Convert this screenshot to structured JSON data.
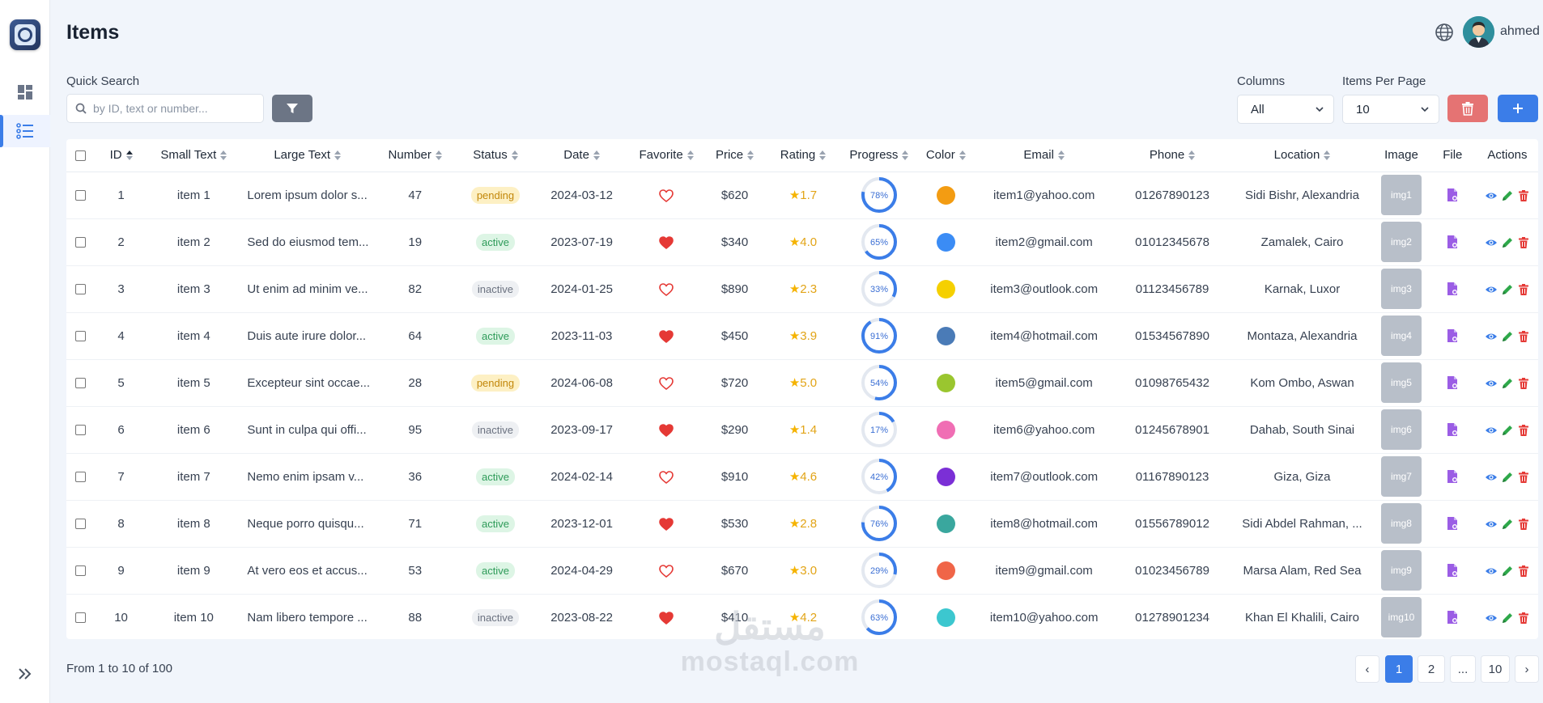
{
  "header": {
    "title": "Items",
    "user_name": "ahmed"
  },
  "filters": {
    "search_label": "Quick Search",
    "search_placeholder": "by ID, text or number...",
    "columns_label": "Columns",
    "columns_value": "All",
    "per_page_label": "Items Per Page",
    "per_page_value": "10"
  },
  "table": {
    "headers": [
      "ID",
      "Small Text",
      "Large Text",
      "Number",
      "Status",
      "Date",
      "Favorite",
      "Price",
      "Rating",
      "Progress",
      "Color",
      "Email",
      "Phone",
      "Location",
      "Image",
      "File",
      "Actions"
    ],
    "rows": [
      {
        "id": "1",
        "small": "item 1",
        "large": "Lorem ipsum dolor s...",
        "number": "47",
        "status": "pending",
        "date": "2024-03-12",
        "favorite": false,
        "price": "$620",
        "rating": "1.7",
        "progress": 78,
        "progress_label": "78%",
        "color": "#f39c12",
        "email": "item1@yahoo.com",
        "phone": "01267890123",
        "location": "Sidi Bishr, Alexandria",
        "image": "img1"
      },
      {
        "id": "2",
        "small": "item 2",
        "large": "Sed do eiusmod tem...",
        "number": "19",
        "status": "active",
        "date": "2023-07-19",
        "favorite": true,
        "price": "$340",
        "rating": "4.0",
        "progress": 65,
        "progress_label": "65%",
        "color": "#3b8cf5",
        "email": "item2@gmail.com",
        "phone": "01012345678",
        "location": "Zamalek, Cairo",
        "image": "img2"
      },
      {
        "id": "3",
        "small": "item 3",
        "large": "Ut enim ad minim ve...",
        "number": "82",
        "status": "inactive",
        "date": "2024-01-25",
        "favorite": false,
        "price": "$890",
        "rating": "2.3",
        "progress": 33,
        "progress_label": "33%",
        "color": "#f5d000",
        "email": "item3@outlook.com",
        "phone": "01123456789",
        "location": "Karnak, Luxor",
        "image": "img3"
      },
      {
        "id": "4",
        "small": "item 4",
        "large": "Duis aute irure dolor...",
        "number": "64",
        "status": "active",
        "date": "2023-11-03",
        "favorite": true,
        "price": "$450",
        "rating": "3.9",
        "progress": 91,
        "progress_label": "91%",
        "color": "#4a7bb7",
        "email": "item4@hotmail.com",
        "phone": "01534567890",
        "location": "Montaza, Alexandria",
        "image": "img4"
      },
      {
        "id": "5",
        "small": "item 5",
        "large": "Excepteur sint occae...",
        "number": "28",
        "status": "pending",
        "date": "2024-06-08",
        "favorite": false,
        "price": "$720",
        "rating": "5.0",
        "progress": 54,
        "progress_label": "54%",
        "color": "#9ac62f",
        "email": "item5@gmail.com",
        "phone": "01098765432",
        "location": "Kom Ombo, Aswan",
        "image": "img5"
      },
      {
        "id": "6",
        "small": "item 6",
        "large": "Sunt in culpa qui offi...",
        "number": "95",
        "status": "inactive",
        "date": "2023-09-17",
        "favorite": true,
        "price": "$290",
        "rating": "1.4",
        "progress": 17,
        "progress_label": "17%",
        "color": "#f06eb4",
        "email": "item6@yahoo.com",
        "phone": "01245678901",
        "location": "Dahab, South Sinai",
        "image": "img6"
      },
      {
        "id": "7",
        "small": "item 7",
        "large": "Nemo enim ipsam v...",
        "number": "36",
        "status": "active",
        "date": "2024-02-14",
        "favorite": false,
        "price": "$910",
        "rating": "4.6",
        "progress": 42,
        "progress_label": "42%",
        "color": "#7b2fd6",
        "email": "item7@outlook.com",
        "phone": "01167890123",
        "location": "Giza, Giza",
        "image": "img7"
      },
      {
        "id": "8",
        "small": "item 8",
        "large": "Neque porro quisqu...",
        "number": "71",
        "status": "active",
        "date": "2023-12-01",
        "favorite": true,
        "price": "$530",
        "rating": "2.8",
        "progress": 76,
        "progress_label": "76%",
        "color": "#3aa79e",
        "email": "item8@hotmail.com",
        "phone": "01556789012",
        "location": "Sidi Abdel Rahman, ...",
        "image": "img8"
      },
      {
        "id": "9",
        "small": "item 9",
        "large": "At vero eos et accus...",
        "number": "53",
        "status": "active",
        "date": "2024-04-29",
        "favorite": false,
        "price": "$670",
        "rating": "3.0",
        "progress": 29,
        "progress_label": "29%",
        "color": "#f06548",
        "email": "item9@gmail.com",
        "phone": "01023456789",
        "location": "Marsa Alam, Red Sea",
        "image": "img9"
      },
      {
        "id": "10",
        "small": "item 10",
        "large": "Nam libero tempore ...",
        "number": "88",
        "status": "inactive",
        "date": "2023-08-22",
        "favorite": true,
        "price": "$410",
        "rating": "4.2",
        "progress": 63,
        "progress_label": "63%",
        "color": "#3cc7cf",
        "email": "item10@yahoo.com",
        "phone": "01278901234",
        "location": "Khan El Khalili, Cairo",
        "image": "img10"
      }
    ]
  },
  "footer": {
    "summary": "From 1 to 10 of 100"
  },
  "pagination": {
    "pages": [
      "1",
      "2",
      "...",
      "10"
    ],
    "current": "1",
    "prev": "‹",
    "next": "›"
  },
  "watermark": {
    "arabic": "مستقل",
    "latin": "mostaql.com"
  },
  "icons": {
    "sidebar": [
      "dashboard-icon",
      "list-icon",
      "double-chevron-right-icon"
    ],
    "toolbar": [
      "search-icon",
      "filter-icon",
      "trash-icon",
      "plus-icon",
      "globe-icon"
    ],
    "row_actions": [
      "eye-icon",
      "pencil-icon",
      "trash-icon"
    ],
    "file": "file-icon",
    "favorite": "heart-icon",
    "rating": "star-icon"
  },
  "colors": {
    "accent": "#3b7de8",
    "danger": "#e57373",
    "filter": "#6c7585",
    "favorite": "#e53935",
    "rating": "#f5b301",
    "pending": "#c2870a",
    "active": "#2e9b59",
    "inactive": "#6b7280"
  }
}
